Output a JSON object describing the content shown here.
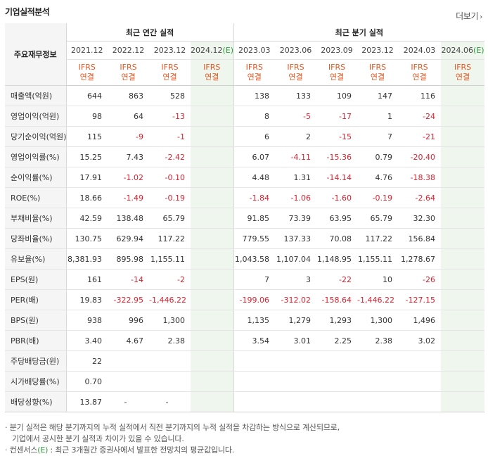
{
  "title": "기업실적분석",
  "more_label": "더보기",
  "more_icon": "chevron-right-icon",
  "header": {
    "row_label": "주요재무정보",
    "annual_group": "최근 연간 실적",
    "quarter_group": "최근 분기 실적",
    "estimate_mark": "(E)",
    "annual_periods": [
      "2021.12",
      "2022.12",
      "2023.12",
      "2024.12"
    ],
    "quarter_periods": [
      "2023.03",
      "2023.06",
      "2023.09",
      "2023.12",
      "2024.03",
      "2024.06"
    ],
    "basis_line1": "IFRS",
    "basis_line2": "연결"
  },
  "rows": [
    {
      "label": "매출액(억원)",
      "annual": [
        "644",
        "863",
        "528",
        ""
      ],
      "quarter": [
        "138",
        "133",
        "109",
        "147",
        "116",
        ""
      ]
    },
    {
      "label": "영업이익(억원)",
      "annual": [
        "98",
        "64",
        "-13",
        ""
      ],
      "quarter": [
        "8",
        "-5",
        "-17",
        "1",
        "-24",
        ""
      ]
    },
    {
      "label": "당기순이익(억원)",
      "annual": [
        "115",
        "-9",
        "-1",
        ""
      ],
      "quarter": [
        "6",
        "2",
        "-15",
        "7",
        "-21",
        ""
      ]
    },
    {
      "label": "영업이익률(%)",
      "annual": [
        "15.25",
        "7.43",
        "-2.42",
        ""
      ],
      "quarter": [
        "6.07",
        "-4.11",
        "-15.36",
        "0.79",
        "-20.40",
        ""
      ]
    },
    {
      "label": "순이익률(%)",
      "annual": [
        "17.91",
        "-1.02",
        "-0.10",
        ""
      ],
      "quarter": [
        "4.48",
        "1.31",
        "-14.14",
        "4.76",
        "-18.38",
        ""
      ]
    },
    {
      "label": "ROE(%)",
      "annual": [
        "18.66",
        "-1.49",
        "-0.19",
        ""
      ],
      "quarter": [
        "-1.84",
        "-1.06",
        "-1.60",
        "-0.19",
        "-2.64",
        ""
      ]
    },
    {
      "label": "부채비율(%)",
      "annual": [
        "42.59",
        "138.48",
        "65.79",
        ""
      ],
      "quarter": [
        "91.85",
        "73.39",
        "63.95",
        "65.79",
        "32.30",
        ""
      ]
    },
    {
      "label": "당좌비율(%)",
      "annual": [
        "130.75",
        "629.94",
        "117.22",
        ""
      ],
      "quarter": [
        "779.55",
        "137.33",
        "70.08",
        "117.22",
        "156.84",
        ""
      ]
    },
    {
      "label": "유보율(%)",
      "annual": [
        "8,381.93",
        "895.98",
        "1,155.11",
        ""
      ],
      "quarter": [
        "1,043.58",
        "1,107.04",
        "1,148.95",
        "1,155.11",
        "1,278.67",
        ""
      ]
    },
    {
      "label": "EPS(원)",
      "annual": [
        "161",
        "-14",
        "-2",
        ""
      ],
      "quarter": [
        "7",
        "3",
        "-22",
        "10",
        "-26",
        ""
      ]
    },
    {
      "label": "PER(배)",
      "annual": [
        "19.83",
        "-322.95",
        "-1,446.22",
        ""
      ],
      "quarter": [
        "-199.06",
        "-312.02",
        "-158.64",
        "-1,446.22",
        "-127.15",
        ""
      ]
    },
    {
      "label": "BPS(원)",
      "annual": [
        "938",
        "996",
        "1,300",
        ""
      ],
      "quarter": [
        "1,135",
        "1,279",
        "1,293",
        "1,300",
        "1,496",
        ""
      ]
    },
    {
      "label": "PBR(배)",
      "annual": [
        "3.40",
        "4.67",
        "2.38",
        ""
      ],
      "quarter": [
        "3.54",
        "3.01",
        "2.25",
        "2.38",
        "3.02",
        ""
      ]
    },
    {
      "label": "주당배당금(원)",
      "annual": [
        "22",
        "",
        "",
        ""
      ],
      "quarter": [
        "",
        "",
        "",
        "",
        "",
        ""
      ]
    },
    {
      "label": "시가배당률(%)",
      "annual": [
        "0.70",
        "",
        "",
        ""
      ],
      "quarter": [
        "",
        "",
        "",
        "",
        "",
        ""
      ]
    },
    {
      "label": "배당성향(%)",
      "annual": [
        "13.87",
        "-",
        "-",
        ""
      ],
      "quarter": [
        "",
        "",
        "",
        "",
        "",
        ""
      ]
    }
  ],
  "notes": {
    "note1_line1": "분기 실적은 해당 분기까지의 누적 실적에서 직전 분기까지의 누적 실적을 차감하는 방식으로 계산되므로,",
    "note1_line2": "기업에서 공시한 분기 실적과 차이가 있을 수 있습니다.",
    "note2_prefix": "컨센서스",
    "note2_mark": "(E)",
    "note2_suffix": ": 최근 3개월간 증권사에서 발표한 전망치의 평균값입니다."
  },
  "colors": {
    "negative": "#e0202e",
    "ifrs": "#e8551f",
    "estimate_bg": "#eef6ee",
    "estimate_mark": "#2e9d3a"
  }
}
